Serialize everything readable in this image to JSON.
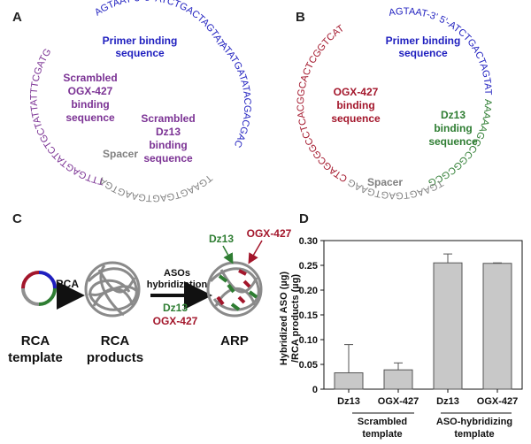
{
  "panels": {
    "a": {
      "letter": "A",
      "top_seq": "AGTAAT-3' 5'-ATCTGACTAGTATATATGATATACGACGAC",
      "left_seq": "TTTGAGTATCTGCTATTATTTCGATG",
      "bottom_seq": "TGAAGTGAGTGAAGTGAAGTGAAG",
      "primer_label_1": "Primer binding",
      "primer_label_2": "sequence",
      "scr_ogx_1": "Scrambled",
      "scr_ogx_2": "OGX-427",
      "scr_ogx_3": "binding",
      "scr_ogx_4": "sequence",
      "scr_dz_1": "Scrambled",
      "scr_dz_2": "Dz13",
      "scr_dz_3": "binding",
      "scr_dz_4": "sequence",
      "spacer": "Spacer"
    },
    "b": {
      "letter": "B",
      "top_seq": "AGTAAT-3' 5'-ATCTGACTAGTATACGGAGGAG",
      "right_lower_seq": "AAAAAGGCCGGCGCGCGC",
      "left_seq": "CTAGCGGCCTCACGGCACTCGGTCAT",
      "bottom_seq": "TGAAGTGAGTGAAGTGAAG",
      "primer_label_1": "Primer binding",
      "primer_label_2": "sequence",
      "ogx_1": "OGX-427",
      "ogx_2": "binding",
      "ogx_3": "sequence",
      "dz_1": "Dz13",
      "dz_2": "binding",
      "dz_3": "sequence",
      "spacer": "Spacer"
    },
    "c": {
      "letter": "C",
      "rca_arrow": "RCA",
      "asos_1": "ASOs",
      "asos_2": "hybridization",
      "dz13_green": "Dz13",
      "ogx_red": "OGX-427",
      "dz13_top": "Dz13",
      "ogx_top": "OGX-427",
      "rca_template_1": "RCA",
      "rca_template_2": "template",
      "rca_products_1": "RCA",
      "rca_products_2": "products",
      "arp": "ARP"
    },
    "d": {
      "letter": "D",
      "group1_1": "Scrambled",
      "group1_2": "template",
      "group2_1": "ASO-hybridizing",
      "group2_2": "template"
    }
  },
  "colors": {
    "blue": "#1f1fbf",
    "purple": "#7b3294",
    "gray": "#808080",
    "red": "#a3162b",
    "green": "#2e7d32",
    "bar": "#c8c8c8"
  },
  "chart_data": {
    "type": "bar",
    "categories": [
      "Dz13",
      "OGX-427",
      "Dz13",
      "OGX-427"
    ],
    "groups": [
      "Scrambled template",
      "ASO-hybridizing template"
    ],
    "values": [
      0.033,
      0.039,
      0.255,
      0.254
    ],
    "errors": [
      0.057,
      0.014,
      0.018,
      0.001
    ],
    "ylabel_1": "Hybridized ASO (µg)",
    "ylabel_2": "/RCA products (µg)",
    "ylim": [
      0,
      0.3
    ],
    "yticks": [
      0,
      0.05,
      0.1,
      0.15,
      0.2,
      0.25,
      0.3
    ],
    "ytick_labels": [
      "0",
      "0.05",
      "0.10",
      "0.15",
      "0.20",
      "0.25",
      "0.30"
    ]
  }
}
